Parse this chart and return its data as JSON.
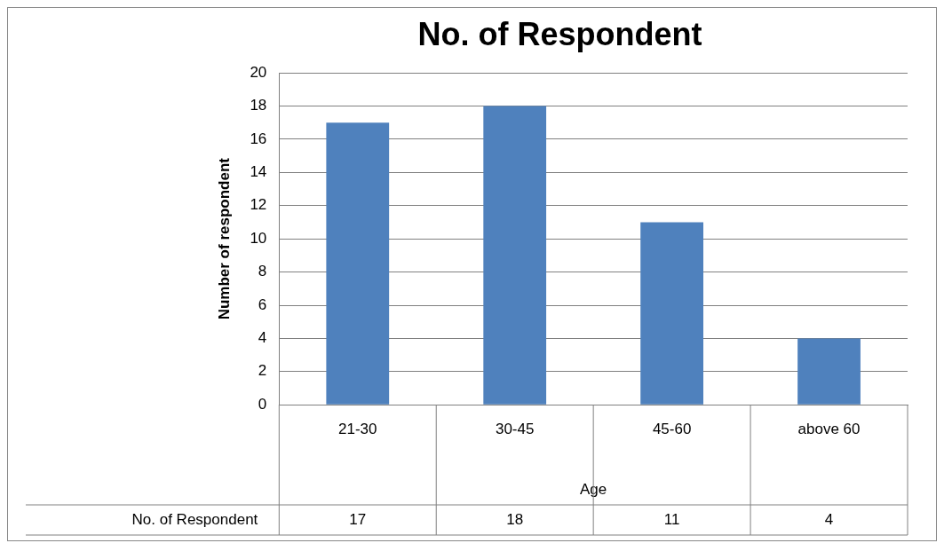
{
  "chart_data": {
    "type": "bar",
    "title": "No. of Respondent",
    "xlabel": "Age",
    "ylabel": "Number of respondent",
    "categories": [
      "21-30",
      "30-45",
      "45-60",
      "above 60"
    ],
    "series": [
      {
        "name": "No. of Respondent",
        "color": "#4f81bd",
        "values": [
          17,
          18,
          11,
          4
        ]
      }
    ],
    "ylim": [
      0,
      20
    ],
    "yticks": [
      0,
      2,
      4,
      6,
      8,
      10,
      12,
      14,
      16,
      18,
      20
    ],
    "grid": "y",
    "legend": false,
    "data_labels": true
  }
}
